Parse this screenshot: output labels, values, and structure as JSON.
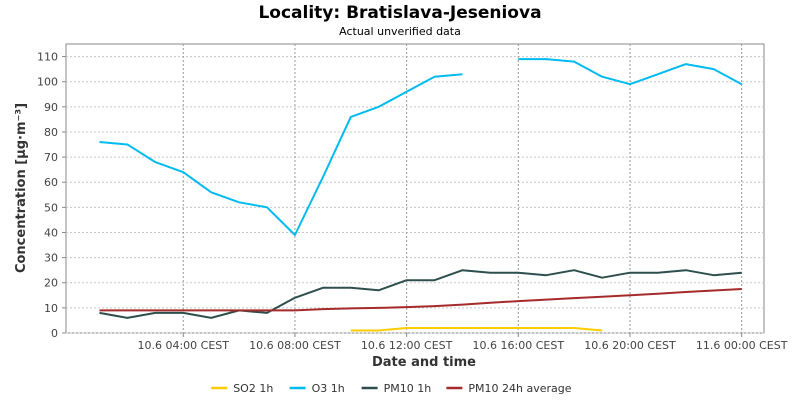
{
  "chart_data": {
    "type": "line",
    "title": "Locality: Bratislava-Jeseniova",
    "subtitle": "Actual unverified data",
    "xlabel": "Date and time",
    "ylabel": "Concentration [µg·m⁻³]",
    "ylim": [
      0,
      115
    ],
    "yticks": [
      0,
      10,
      20,
      30,
      40,
      50,
      60,
      70,
      80,
      90,
      100,
      110
    ],
    "x_hours": [
      1,
      2,
      3,
      4,
      5,
      6,
      7,
      8,
      9,
      10,
      11,
      12,
      13,
      14,
      15,
      16,
      17,
      18,
      19,
      20,
      21,
      22,
      23,
      24
    ],
    "xlim": [
      -0.2,
      24.8
    ],
    "x_ticks": [
      {
        "label": "10.6 04:00 CEST",
        "hour": 4
      },
      {
        "label": "10.6 08:00 CEST",
        "hour": 8
      },
      {
        "label": "10.6 12:00 CEST",
        "hour": 12
      },
      {
        "label": "10.6 16:00 CEST",
        "hour": 16
      },
      {
        "label": "10.6 20:00 CEST",
        "hour": 20
      },
      {
        "label": "11.6 00:00 CEST",
        "hour": 24
      }
    ],
    "grid": true,
    "legend_position": "bottom",
    "series": [
      {
        "name": "SO2 1h",
        "color": "#ffcc00",
        "values": [
          null,
          null,
          null,
          null,
          null,
          null,
          null,
          null,
          null,
          1,
          1,
          2,
          2,
          2,
          2,
          2,
          2,
          2,
          1,
          null,
          null,
          null,
          null,
          null
        ]
      },
      {
        "name": "O3 1h",
        "color": "#00bbf0",
        "values": [
          76,
          75,
          68,
          64,
          56,
          52,
          50,
          39,
          62,
          86,
          90,
          96,
          102,
          103,
          null,
          109,
          109,
          108,
          102,
          99,
          103,
          107,
          105,
          99
        ]
      },
      {
        "name": "PM10 1h",
        "color": "#2f4f4f",
        "values": [
          8,
          6,
          8,
          8,
          6,
          9,
          8,
          14,
          18,
          18,
          17,
          21,
          21,
          25,
          24,
          24,
          23,
          25,
          22,
          24,
          24,
          25,
          23,
          24
        ]
      },
      {
        "name": "PM10 24h average",
        "color": "#a52a2a",
        "values": [
          9,
          9,
          9,
          9,
          9,
          9,
          9,
          9,
          9.5,
          9.8,
          10,
          10.3,
          10.7,
          11.3,
          12,
          12.7,
          13.3,
          13.9,
          14.4,
          15,
          15.6,
          16.3,
          16.9,
          17.5
        ]
      }
    ]
  }
}
